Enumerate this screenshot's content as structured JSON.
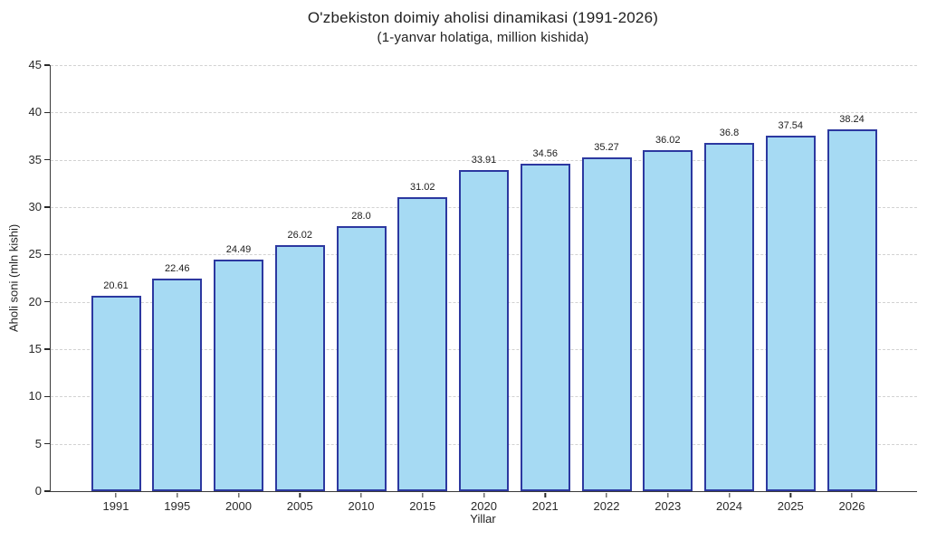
{
  "chart_data": {
    "type": "bar",
    "title": "O'zbekiston doimiy aholisi dinamikasi (1991-2026)",
    "subtitle": "(1-yanvar holatiga, million kishida)",
    "xlabel": "Yillar",
    "ylabel": "Aholi soni (mln kishi)",
    "categories": [
      "1991",
      "1995",
      "2000",
      "2005",
      "2010",
      "2015",
      "2020",
      "2021",
      "2022",
      "2023",
      "2024",
      "2025",
      "2026"
    ],
    "values": [
      20.61,
      22.46,
      24.49,
      26.02,
      28.0,
      31.02,
      33.91,
      34.56,
      35.27,
      36.02,
      36.8,
      37.54,
      38.24
    ],
    "value_labels": [
      "20.61",
      "22.46",
      "24.49",
      "26.02",
      "28.0",
      "31.02",
      "33.91",
      "34.56",
      "35.27",
      "36.02",
      "36.8",
      "37.54",
      "38.24"
    ],
    "ylim": [
      0,
      45
    ],
    "yticks": [
      0,
      5,
      10,
      15,
      20,
      25,
      30,
      35,
      40,
      45
    ],
    "grid": "horizontal-dashed",
    "legend_position": "none",
    "bar_fill_color": "#a6daf3",
    "bar_border_color": "#2c38a0",
    "gridline_color": "#d2d2d2",
    "axis_color": "#3a3a3a",
    "text_color": "#1f1f1f"
  }
}
